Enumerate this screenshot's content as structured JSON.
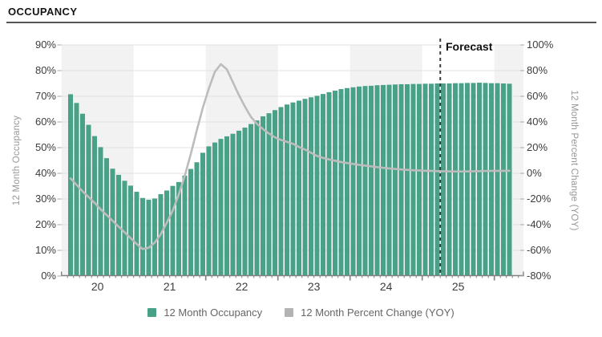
{
  "header": {
    "title": "OCCUPANCY"
  },
  "forecast_label": "Forecast",
  "legend": [
    {
      "label": "12 Month Occupancy",
      "color": "#49a287"
    },
    {
      "label": "12 Month Percent Change (YOY)",
      "color": "#b3b3b3"
    }
  ],
  "left_axis": {
    "title": "12 Month Occupancy",
    "min": 0,
    "max": 90,
    "step": 10,
    "ticks": [
      "0%",
      "10%",
      "20%",
      "30%",
      "40%",
      "50%",
      "60%",
      "70%",
      "80%",
      "90%"
    ]
  },
  "right_axis": {
    "title": "12 Month Percent Change (YOY)",
    "min": -80,
    "max": 100,
    "step": 20,
    "ticks": [
      "-80%",
      "-60%",
      "-40%",
      "-20%",
      "0%",
      "20%",
      "40%",
      "60%",
      "80%",
      "100%"
    ]
  },
  "x_axis": {
    "year_labels": [
      "20",
      "21",
      "22",
      "23",
      "24",
      "25"
    ]
  },
  "colors": {
    "bar_green": "#49a287",
    "line_gray": "#bcbcbc",
    "band_gray": "#f2f2f2",
    "gridline": "#e2e2e2",
    "axis_line": "#808080",
    "tick_mark": "#a8a8a8",
    "forecast_line": "#3c3c3c"
  },
  "chart_data": {
    "type": "bar",
    "title": "OCCUPANCY",
    "x_months": [
      "2020-02",
      "2020-03",
      "2020-04",
      "2020-05",
      "2020-06",
      "2020-07",
      "2020-08",
      "2020-09",
      "2020-10",
      "2020-11",
      "2020-12",
      "2021-01",
      "2021-02",
      "2021-03",
      "2021-04",
      "2021-05",
      "2021-06",
      "2021-07",
      "2021-08",
      "2021-09",
      "2021-10",
      "2021-11",
      "2021-12",
      "2022-01",
      "2022-02",
      "2022-03",
      "2022-04",
      "2022-05",
      "2022-06",
      "2022-07",
      "2022-08",
      "2022-09",
      "2022-10",
      "2022-11",
      "2022-12",
      "2023-01",
      "2023-02",
      "2023-03",
      "2023-04",
      "2023-05",
      "2023-06",
      "2023-07",
      "2023-08",
      "2023-09",
      "2023-10",
      "2023-11",
      "2023-12",
      "2024-01",
      "2024-02",
      "2024-03",
      "2024-04",
      "2024-05",
      "2024-06",
      "2024-07",
      "2024-08",
      "2024-09",
      "2024-10",
      "2024-11",
      "2024-12",
      "2025-01",
      "2025-02",
      "2025-03",
      "2025-04",
      "2025-05",
      "2025-06",
      "2025-07",
      "2025-08",
      "2025-09",
      "2025-10",
      "2025-11",
      "2025-12",
      "2026-01",
      "2026-02",
      "2026-03"
    ],
    "series": [
      {
        "name": "12 Month Occupancy",
        "type": "bar",
        "axis": "left",
        "color": "#49a287",
        "values": [
          70.8,
          67.4,
          63.2,
          58.9,
          54.5,
          50.2,
          45.9,
          41.8,
          39.4,
          37.1,
          35.2,
          32.8,
          30.4,
          29.7,
          30.2,
          31.9,
          33.3,
          35.1,
          36.6,
          39.1,
          41.7,
          44.3,
          48.0,
          50.5,
          52.0,
          53.4,
          54.4,
          55.4,
          56.6,
          57.8,
          59.2,
          60.6,
          62.2,
          63.4,
          64.6,
          65.8,
          66.8,
          67.6,
          68.3,
          69.0,
          69.6,
          70.2,
          70.9,
          71.6,
          72.2,
          72.8,
          73.2,
          73.5,
          73.8,
          74.0,
          74.1,
          74.3,
          74.4,
          74.5,
          74.6,
          74.7,
          74.7,
          74.8,
          74.8,
          74.9,
          74.9,
          75.0,
          75.0,
          75.0,
          75.1,
          75.1,
          75.2,
          75.2,
          75.3,
          75.2,
          75.1,
          75.1,
          75.0,
          74.9
        ]
      },
      {
        "name": "12 Month Percent Change (YOY)",
        "type": "line",
        "axis": "right",
        "color": "#bcbcbc",
        "values": [
          -4,
          -9,
          -14,
          -18.5,
          -23,
          -28,
          -32.5,
          -37,
          -41.5,
          -46,
          -50.5,
          -55,
          -59,
          -58,
          -54,
          -47.5,
          -38.5,
          -29,
          -16.5,
          -2,
          15,
          33.5,
          51,
          66,
          79,
          85,
          81,
          71,
          61,
          52,
          44,
          38.5,
          34.5,
          31,
          28,
          26,
          24.5,
          23,
          20.5,
          18.5,
          16,
          13.5,
          12,
          10.8,
          9.8,
          8.8,
          8,
          7.3,
          6.6,
          6,
          5.4,
          4.8,
          4.3,
          3.8,
          3.4,
          3,
          2.7,
          2.4,
          2.2,
          2.0,
          1.9,
          1.7,
          1.6,
          1.5,
          1.4,
          1.4,
          1.5,
          1.6,
          1.7,
          1.8,
          1.9,
          1.9,
          1.9,
          2.0
        ]
      }
    ],
    "left_ylim": [
      0,
      90
    ],
    "right_ylim": [
      -80,
      100
    ],
    "grid": true,
    "legend_position": "bottom",
    "forecast_start": "2025-04",
    "shaded_years": [
      "2020",
      "2022",
      "2024",
      "2026"
    ]
  }
}
